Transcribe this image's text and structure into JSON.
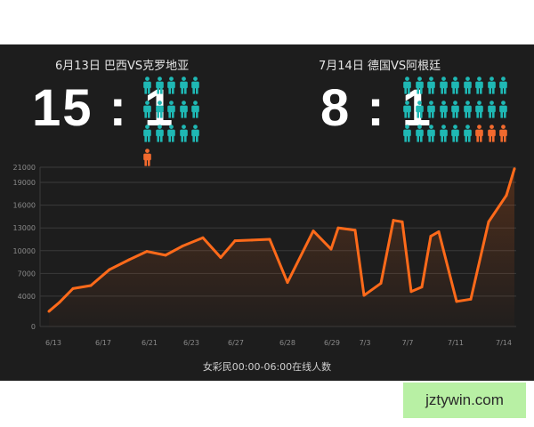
{
  "matches": [
    {
      "title": "6月13日 巴西VS克罗地亚",
      "score": "15 : 1",
      "ratio_main": 15,
      "ratio_other": 1
    },
    {
      "title": "7月14日 德国VS阿根廷",
      "score": "8 : 1",
      "ratio_main": 8,
      "ratio_other": 1
    }
  ],
  "colors": {
    "line": "#ff6a1a",
    "teal": "#1fb8b4",
    "orange": "#f26a2e",
    "grid": "#3a3a3a",
    "tick": "#8a8a8a"
  },
  "icons": {
    "person": "person-icon"
  },
  "caption": "女彩民00:00-06:00在线人数",
  "watermark": "jztywin.com",
  "chart_data": {
    "type": "area",
    "title": "",
    "xlabel": "女彩民00:00-06:00在线人数",
    "ylabel": "",
    "ylim": [
      0,
      21000
    ],
    "yticks": [
      0,
      4000,
      7000,
      10000,
      13000,
      16000,
      19000,
      21000
    ],
    "xticks": [
      "6/13",
      "6/17",
      "6/21",
      "6/23",
      "6/27",
      "6/28",
      "6/29",
      "7/3",
      "7/7",
      "7/11",
      "7/14"
    ],
    "grid": true,
    "series": [
      {
        "values": [
          2000,
          3200,
          5000,
          5400,
          7500,
          8800,
          9900,
          9400,
          10600,
          11700,
          9100,
          11300,
          11400,
          11500,
          5800,
          12600,
          10200,
          13000,
          12700,
          4100,
          5700,
          14000,
          13800,
          4600,
          5200,
          11900,
          12500,
          3300,
          3600,
          13800,
          17300,
          20800
        ]
      }
    ]
  }
}
